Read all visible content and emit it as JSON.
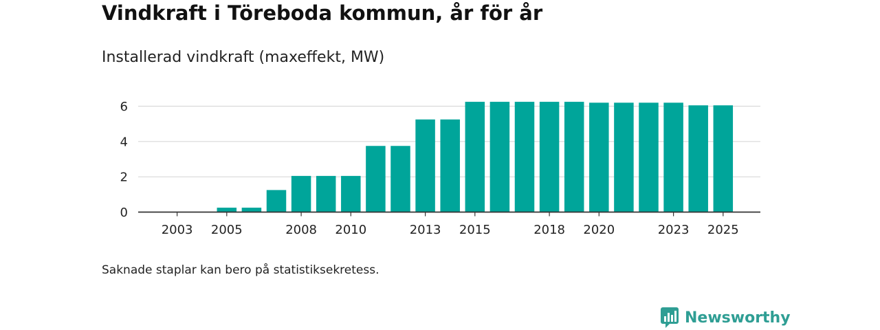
{
  "title": "Vindkraft i Töreboda kommun, år för år",
  "subtitle": "Installerad vindkraft (maxeffekt, MW)",
  "note": "Saknade staplar kan bero på statistiksekretess.",
  "brand": {
    "name": "Newsworthy",
    "icon": "newsworthy-logo-icon"
  },
  "colors": {
    "bar": "#00a59a",
    "grid": "#d9d9d9",
    "axis": "#333333",
    "brand": "#2f9e94"
  },
  "chart_data": {
    "type": "bar",
    "title": "Vindkraft i Töreboda kommun, år för år",
    "subtitle": "Installerad vindkraft (maxeffekt, MW)",
    "xlabel": "",
    "ylabel": "",
    "categories": [
      "2002",
      "2003",
      "2004",
      "2005",
      "2006",
      "2007",
      "2008",
      "2009",
      "2010",
      "2011",
      "2012",
      "2013",
      "2014",
      "2015",
      "2016",
      "2017",
      "2018",
      "2019",
      "2020",
      "2021",
      "2022",
      "2023",
      "2024",
      "2025"
    ],
    "values": [
      0,
      0,
      0,
      0.25,
      0.25,
      1.25,
      2.05,
      2.05,
      2.05,
      3.75,
      3.75,
      5.25,
      5.25,
      6.25,
      6.25,
      6.25,
      6.25,
      6.25,
      6.2,
      6.2,
      6.2,
      6.2,
      6.05,
      6.05
    ],
    "x_tick_labels": [
      "2003",
      "2005",
      "2008",
      "2010",
      "2013",
      "2015",
      "2018",
      "2020",
      "2023",
      "2025"
    ],
    "y_ticks": [
      0,
      2,
      4,
      6
    ],
    "ylim": [
      0,
      6.6
    ],
    "grid": true
  }
}
